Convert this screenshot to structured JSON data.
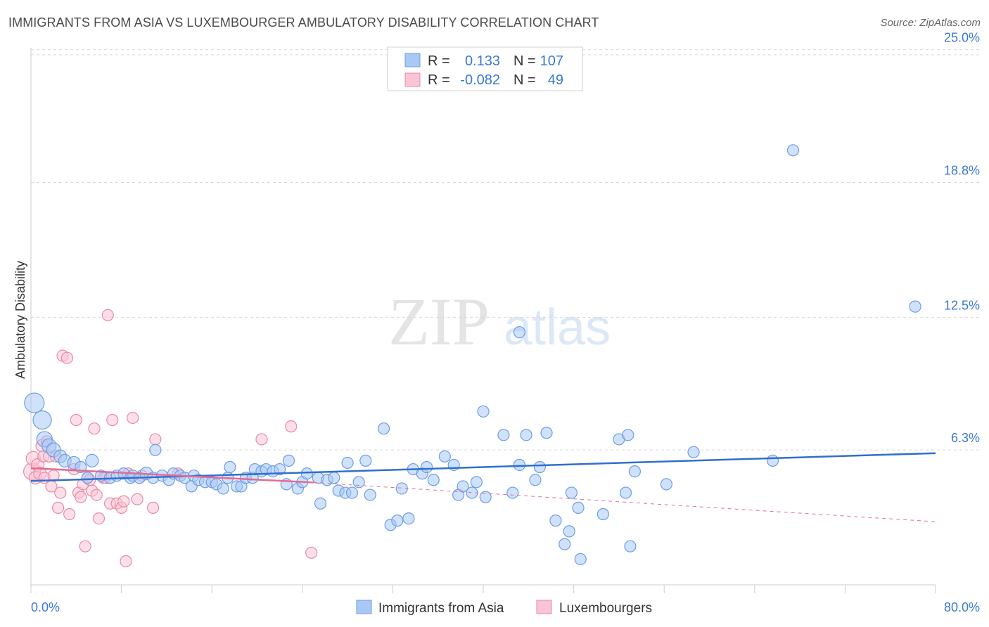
{
  "title": "IMMIGRANTS FROM ASIA VS LUXEMBOURGER AMBULATORY DISABILITY CORRELATION CHART",
  "source": "Source: ZipAtlas.com",
  "watermark": {
    "part1": "ZIP",
    "part2": "atlas"
  },
  "legend": {
    "r_label": "R =",
    "n_label": "N =",
    "rows": [
      {
        "r": "0.133",
        "n": "107",
        "color": "#a9c8f5",
        "border": "#6b9ee6"
      },
      {
        "r": "-0.082",
        "n": "49",
        "color": "#f9c4d4",
        "border": "#e88aa8"
      }
    ]
  },
  "bottom_legend": [
    "Immigrants from Asia",
    "Luxembourgers"
  ],
  "colors": {
    "blue_fill": "#a9c8f5",
    "blue_stroke": "#6b9ee6",
    "blue_line": "#2f6fcf",
    "pink_fill": "#f9c4d4",
    "pink_stroke": "#e88aa8",
    "pink_line": "#e46b93",
    "grid": "#d8d8d8",
    "tick_text": "#3a78d4"
  },
  "chart_data": {
    "type": "scatter",
    "title": "IMMIGRANTS FROM ASIA VS LUXEMBOURGER AMBULATORY DISABILITY CORRELATION CHART",
    "xlabel": "",
    "ylabel": "Ambulatory Disability",
    "xlim": [
      0,
      80
    ],
    "ylim": [
      0,
      26.5
    ],
    "x_tick_labels": [
      "0.0%",
      "80.0%"
    ],
    "y_ticks": [
      6.3,
      12.5,
      18.8,
      25.0
    ],
    "y_tick_labels": [
      "6.3%",
      "12.5%",
      "18.8%",
      "25.0%"
    ],
    "grid": true,
    "legend_position": "top-center",
    "series": [
      {
        "name": "Immigrants from Asia",
        "r": 0.133,
        "n": 107,
        "trend": {
          "x": [
            0,
            80
          ],
          "y": [
            4.85,
            6.15
          ],
          "style": "solid"
        },
        "points": [
          [
            0.3,
            8.5,
            14
          ],
          [
            1.0,
            7.7,
            13
          ],
          [
            1.2,
            6.8,
            11
          ],
          [
            1.6,
            6.5,
            10
          ],
          [
            2.0,
            6.3,
            10
          ],
          [
            2.6,
            6.0,
            9
          ],
          [
            3.0,
            5.8,
            9
          ],
          [
            3.8,
            5.7,
            9
          ],
          [
            4.4,
            5.5,
            8
          ],
          [
            5.4,
            5.8,
            9
          ],
          [
            5.0,
            5.0,
            8
          ],
          [
            6.2,
            5.1,
            8
          ],
          [
            7.0,
            5.0,
            8
          ],
          [
            7.6,
            5.1,
            8
          ],
          [
            8.2,
            5.2,
            8
          ],
          [
            8.8,
            5.0,
            8
          ],
          [
            9.0,
            5.1,
            8
          ],
          [
            9.6,
            5.0,
            8
          ],
          [
            10.2,
            5.2,
            9
          ],
          [
            10.8,
            5.0,
            8
          ],
          [
            11.0,
            6.3,
            8
          ],
          [
            11.6,
            5.1,
            8
          ],
          [
            12.2,
            4.9,
            8
          ],
          [
            12.6,
            5.2,
            8
          ],
          [
            13.2,
            5.1,
            8
          ],
          [
            13.6,
            5.0,
            8
          ],
          [
            14.2,
            4.6,
            8
          ],
          [
            14.4,
            5.1,
            8
          ],
          [
            14.8,
            4.9,
            8
          ],
          [
            15.4,
            4.8,
            8
          ],
          [
            16.0,
            4.8,
            8
          ],
          [
            16.4,
            4.7,
            8
          ],
          [
            17.0,
            4.5,
            8
          ],
          [
            17.4,
            5.0,
            8
          ],
          [
            17.6,
            5.5,
            8
          ],
          [
            18.2,
            4.6,
            8
          ],
          [
            18.6,
            4.6,
            8
          ],
          [
            19.0,
            5.0,
            8
          ],
          [
            19.6,
            5.0,
            8
          ],
          [
            19.8,
            5.4,
            8
          ],
          [
            20.4,
            5.3,
            8
          ],
          [
            20.8,
            5.4,
            8
          ],
          [
            21.4,
            5.3,
            8
          ],
          [
            22.0,
            5.4,
            8
          ],
          [
            22.6,
            4.7,
            8
          ],
          [
            22.8,
            5.8,
            8
          ],
          [
            23.6,
            4.5,
            8
          ],
          [
            24.0,
            4.8,
            8
          ],
          [
            24.4,
            5.2,
            8
          ],
          [
            25.4,
            5.0,
            8
          ],
          [
            25.6,
            3.8,
            8
          ],
          [
            26.2,
            4.9,
            8
          ],
          [
            26.8,
            5.0,
            8
          ],
          [
            27.2,
            4.4,
            8
          ],
          [
            27.8,
            4.3,
            8
          ],
          [
            28.0,
            5.7,
            8
          ],
          [
            28.4,
            4.3,
            8
          ],
          [
            29.0,
            4.8,
            8
          ],
          [
            29.6,
            5.8,
            8
          ],
          [
            30.0,
            4.2,
            8
          ],
          [
            31.2,
            7.3,
            8
          ],
          [
            31.8,
            2.8,
            8
          ],
          [
            32.4,
            3.0,
            8
          ],
          [
            32.8,
            4.5,
            8
          ],
          [
            33.4,
            3.1,
            8
          ],
          [
            33.8,
            5.4,
            8
          ],
          [
            34.6,
            5.2,
            8
          ],
          [
            35.0,
            5.5,
            8
          ],
          [
            35.6,
            4.9,
            8
          ],
          [
            36.6,
            6.0,
            8
          ],
          [
            37.4,
            5.6,
            8
          ],
          [
            37.8,
            4.2,
            8
          ],
          [
            38.2,
            4.6,
            8
          ],
          [
            39.0,
            4.3,
            8
          ],
          [
            39.4,
            4.8,
            8
          ],
          [
            40.2,
            4.1,
            8
          ],
          [
            40.0,
            8.1,
            8
          ],
          [
            41.8,
            7.0,
            8
          ],
          [
            42.6,
            4.3,
            8
          ],
          [
            43.2,
            5.6,
            8
          ],
          [
            43.8,
            7.0,
            8
          ],
          [
            43.2,
            11.8,
            8
          ],
          [
            44.6,
            4.9,
            8
          ],
          [
            45.0,
            5.5,
            8
          ],
          [
            45.6,
            7.1,
            8
          ],
          [
            46.4,
            3.0,
            8
          ],
          [
            47.2,
            1.9,
            8
          ],
          [
            47.6,
            2.5,
            8
          ],
          [
            47.8,
            4.3,
            8
          ],
          [
            48.4,
            3.6,
            8
          ],
          [
            48.6,
            1.2,
            8
          ],
          [
            50.6,
            3.3,
            8
          ],
          [
            52.0,
            6.8,
            8
          ],
          [
            52.6,
            4.3,
            8
          ],
          [
            52.8,
            7.0,
            8
          ],
          [
            53.0,
            1.8,
            8
          ],
          [
            53.4,
            5.3,
            8
          ],
          [
            56.2,
            4.7,
            8
          ],
          [
            58.6,
            6.2,
            8
          ],
          [
            65.6,
            5.8,
            8
          ],
          [
            67.4,
            20.3,
            8
          ],
          [
            78.2,
            13.0,
            8
          ]
        ]
      },
      {
        "name": "Luxembourgers",
        "r": -0.082,
        "n": 49,
        "trend": {
          "x": [
            0,
            25
          ],
          "y": [
            5.45,
            4.78
          ],
          "style": "solid",
          "extended": {
            "x": [
              25,
              80
            ],
            "y": [
              4.78,
              2.95
            ],
            "style": "dashed"
          }
        },
        "points": [
          [
            0.1,
            5.3,
            12
          ],
          [
            0.2,
            5.9,
            10
          ],
          [
            0.4,
            5.0,
            9
          ],
          [
            0.6,
            5.6,
            9
          ],
          [
            0.8,
            5.2,
            9
          ],
          [
            1.0,
            6.5,
            9
          ],
          [
            1.1,
            6.0,
            8
          ],
          [
            1.2,
            5.0,
            8
          ],
          [
            1.4,
            6.7,
            8
          ],
          [
            1.6,
            6.0,
            8
          ],
          [
            1.8,
            4.6,
            8
          ],
          [
            2.0,
            5.1,
            8
          ],
          [
            2.2,
            6.0,
            8
          ],
          [
            2.4,
            3.6,
            8
          ],
          [
            2.6,
            4.3,
            8
          ],
          [
            2.8,
            10.7,
            8
          ],
          [
            3.2,
            10.6,
            8
          ],
          [
            3.4,
            3.3,
            8
          ],
          [
            3.8,
            5.4,
            8
          ],
          [
            4.0,
            7.7,
            8
          ],
          [
            4.2,
            4.3,
            8
          ],
          [
            4.4,
            4.1,
            8
          ],
          [
            4.6,
            4.7,
            8
          ],
          [
            4.8,
            1.8,
            8
          ],
          [
            5.0,
            5.0,
            8
          ],
          [
            5.2,
            4.9,
            8
          ],
          [
            5.4,
            4.4,
            8
          ],
          [
            5.6,
            7.3,
            8
          ],
          [
            5.8,
            4.2,
            8
          ],
          [
            6.0,
            3.1,
            8
          ],
          [
            6.4,
            5.0,
            8
          ],
          [
            6.6,
            5.0,
            8
          ],
          [
            6.8,
            12.6,
            8
          ],
          [
            7.0,
            3.8,
            8
          ],
          [
            7.2,
            7.7,
            8
          ],
          [
            7.6,
            3.8,
            8
          ],
          [
            8.0,
            3.6,
            8
          ],
          [
            8.2,
            3.9,
            8
          ],
          [
            8.4,
            1.1,
            8
          ],
          [
            8.6,
            5.2,
            8
          ],
          [
            9.0,
            7.8,
            8
          ],
          [
            9.4,
            4.0,
            8
          ],
          [
            9.8,
            5.1,
            8
          ],
          [
            10.8,
            3.6,
            8
          ],
          [
            11.0,
            6.8,
            8
          ],
          [
            13.0,
            5.2,
            8
          ],
          [
            20.4,
            6.8,
            8
          ],
          [
            23.0,
            7.4,
            8
          ],
          [
            24.8,
            1.5,
            8
          ]
        ]
      }
    ]
  }
}
